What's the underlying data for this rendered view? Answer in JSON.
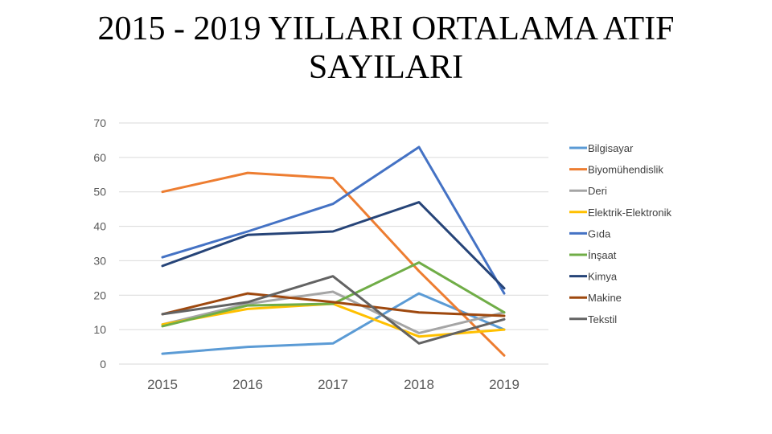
{
  "title": "2015 - 2019 YILLARI ORTALAMA ATIF\nSAYILARI",
  "chart_data": {
    "type": "line",
    "title": "2015 - 2019 YILLARI ORTALAMA ATIF SAYILARI",
    "xlabel": "",
    "ylabel": "",
    "x": [
      "2015",
      "2016",
      "2017",
      "2018",
      "2019"
    ],
    "ylim": [
      0,
      70
    ],
    "yticks": [
      0,
      10,
      20,
      30,
      40,
      50,
      60,
      70
    ],
    "grid": true,
    "legend_position": "right",
    "series": [
      {
        "name": "Bilgisayar",
        "color": "#5b9bd5",
        "values": [
          3,
          5,
          6,
          20.5,
          10
        ]
      },
      {
        "name": "Biyomühendislik",
        "color": "#ed7d31",
        "values": [
          50,
          55.5,
          54,
          27,
          2.5
        ]
      },
      {
        "name": "Deri",
        "color": "#a5a5a5",
        "values": [
          11.5,
          17.5,
          21,
          9,
          15
        ]
      },
      {
        "name": "Elektrik-Elektronik",
        "color": "#ffc000",
        "values": [
          11.5,
          16,
          17.5,
          8,
          10
        ]
      },
      {
        "name": "Gıda",
        "color": "#4472c4",
        "values": [
          31,
          38.5,
          46.5,
          63,
          20.5
        ]
      },
      {
        "name": "İnşaat",
        "color": "#70ad47",
        "values": [
          11,
          17,
          17.5,
          29.5,
          15
        ]
      },
      {
        "name": "Kimya",
        "color": "#264478",
        "values": [
          28.5,
          37.5,
          38.5,
          47,
          22
        ]
      },
      {
        "name": "Makine",
        "color": "#9e480e",
        "values": [
          14.5,
          20.5,
          18,
          15,
          14
        ]
      },
      {
        "name": "Tekstil",
        "color": "#636363",
        "values": [
          14.5,
          18,
          25.5,
          6,
          13
        ]
      }
    ]
  }
}
